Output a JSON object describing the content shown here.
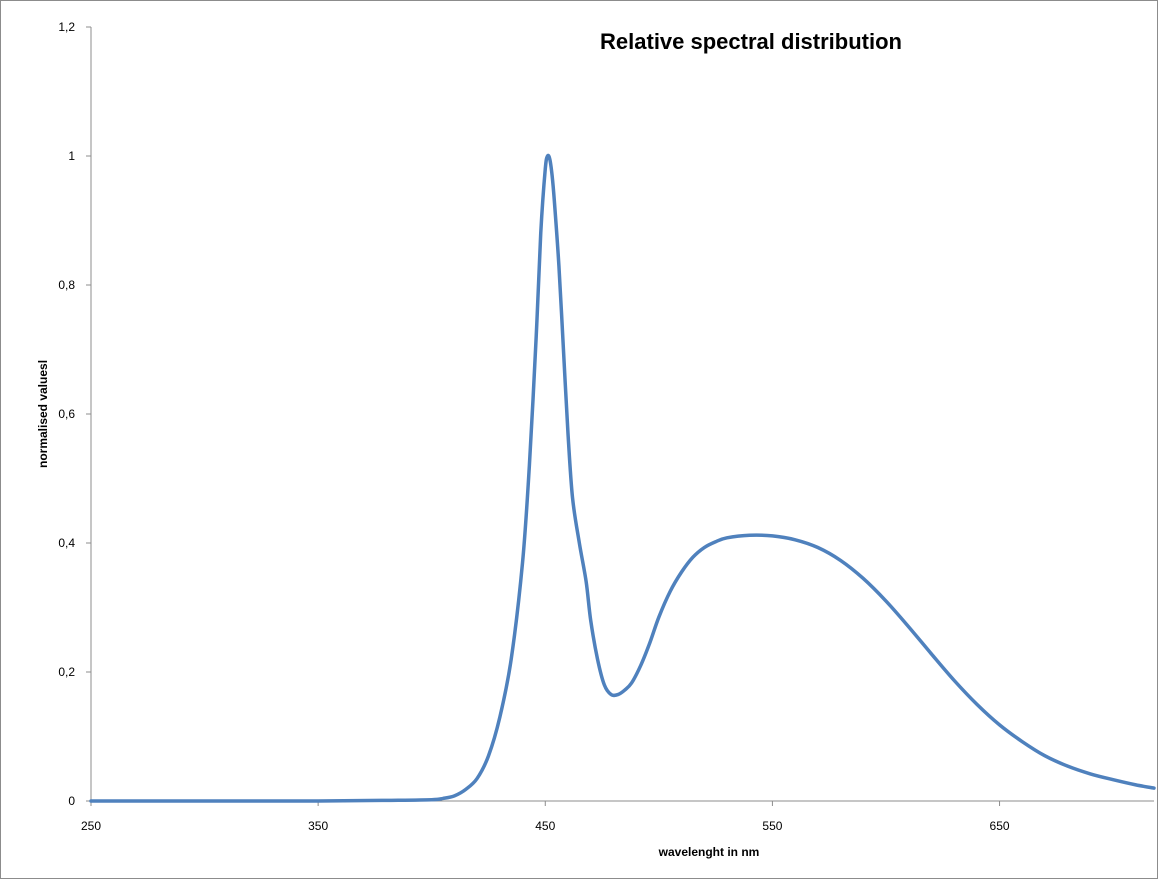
{
  "chart_data": {
    "type": "line",
    "title": "Relative spectral distribution",
    "xlabel": "wavelenght in nm",
    "ylabel": "normalised valuesl",
    "xlim": [
      250,
      718
    ],
    "ylim": [
      0,
      1.2
    ],
    "x_ticks": [
      {
        "value": 250,
        "label": "250"
      },
      {
        "value": 350,
        "label": "350"
      },
      {
        "value": 450,
        "label": "450"
      },
      {
        "value": 550,
        "label": "550"
      },
      {
        "value": 650,
        "label": "650"
      }
    ],
    "y_ticks": [
      {
        "value": 0,
        "label": "0"
      },
      {
        "value": 0.2,
        "label": "0,2"
      },
      {
        "value": 0.4,
        "label": "0,4"
      },
      {
        "value": 0.6,
        "label": "0,6"
      },
      {
        "value": 0.8,
        "label": "0,8"
      },
      {
        "value": 1.0,
        "label": "1"
      },
      {
        "value": 1.2,
        "label": "1,2"
      }
    ],
    "grid": false,
    "legend": "none",
    "line_color": "#4f81bd",
    "series": [
      {
        "x": [
          250,
          300,
          350,
          380,
          400,
          405,
          410,
          415,
          420,
          425,
          430,
          435,
          440,
          443,
          446,
          448,
          450,
          451,
          452,
          453,
          454,
          456,
          458,
          460,
          462,
          465,
          468,
          470,
          473,
          476,
          479,
          482,
          485,
          488,
          492,
          496,
          500,
          505,
          510,
          515,
          520,
          525,
          530,
          540,
          550,
          560,
          570,
          580,
          590,
          600,
          610,
          620,
          630,
          640,
          650,
          660,
          670,
          680,
          690,
          700,
          710,
          718
        ],
        "y": [
          0,
          0,
          0,
          0.001,
          0.002,
          0.004,
          0.008,
          0.018,
          0.035,
          0.07,
          0.13,
          0.22,
          0.37,
          0.52,
          0.72,
          0.88,
          0.98,
          1.0,
          0.995,
          0.97,
          0.93,
          0.83,
          0.7,
          0.57,
          0.47,
          0.4,
          0.34,
          0.28,
          0.22,
          0.18,
          0.165,
          0.165,
          0.172,
          0.183,
          0.21,
          0.245,
          0.285,
          0.325,
          0.355,
          0.378,
          0.393,
          0.402,
          0.408,
          0.412,
          0.411,
          0.405,
          0.393,
          0.373,
          0.345,
          0.31,
          0.27,
          0.228,
          0.187,
          0.15,
          0.118,
          0.092,
          0.07,
          0.054,
          0.042,
          0.033,
          0.025,
          0.02
        ]
      }
    ]
  }
}
